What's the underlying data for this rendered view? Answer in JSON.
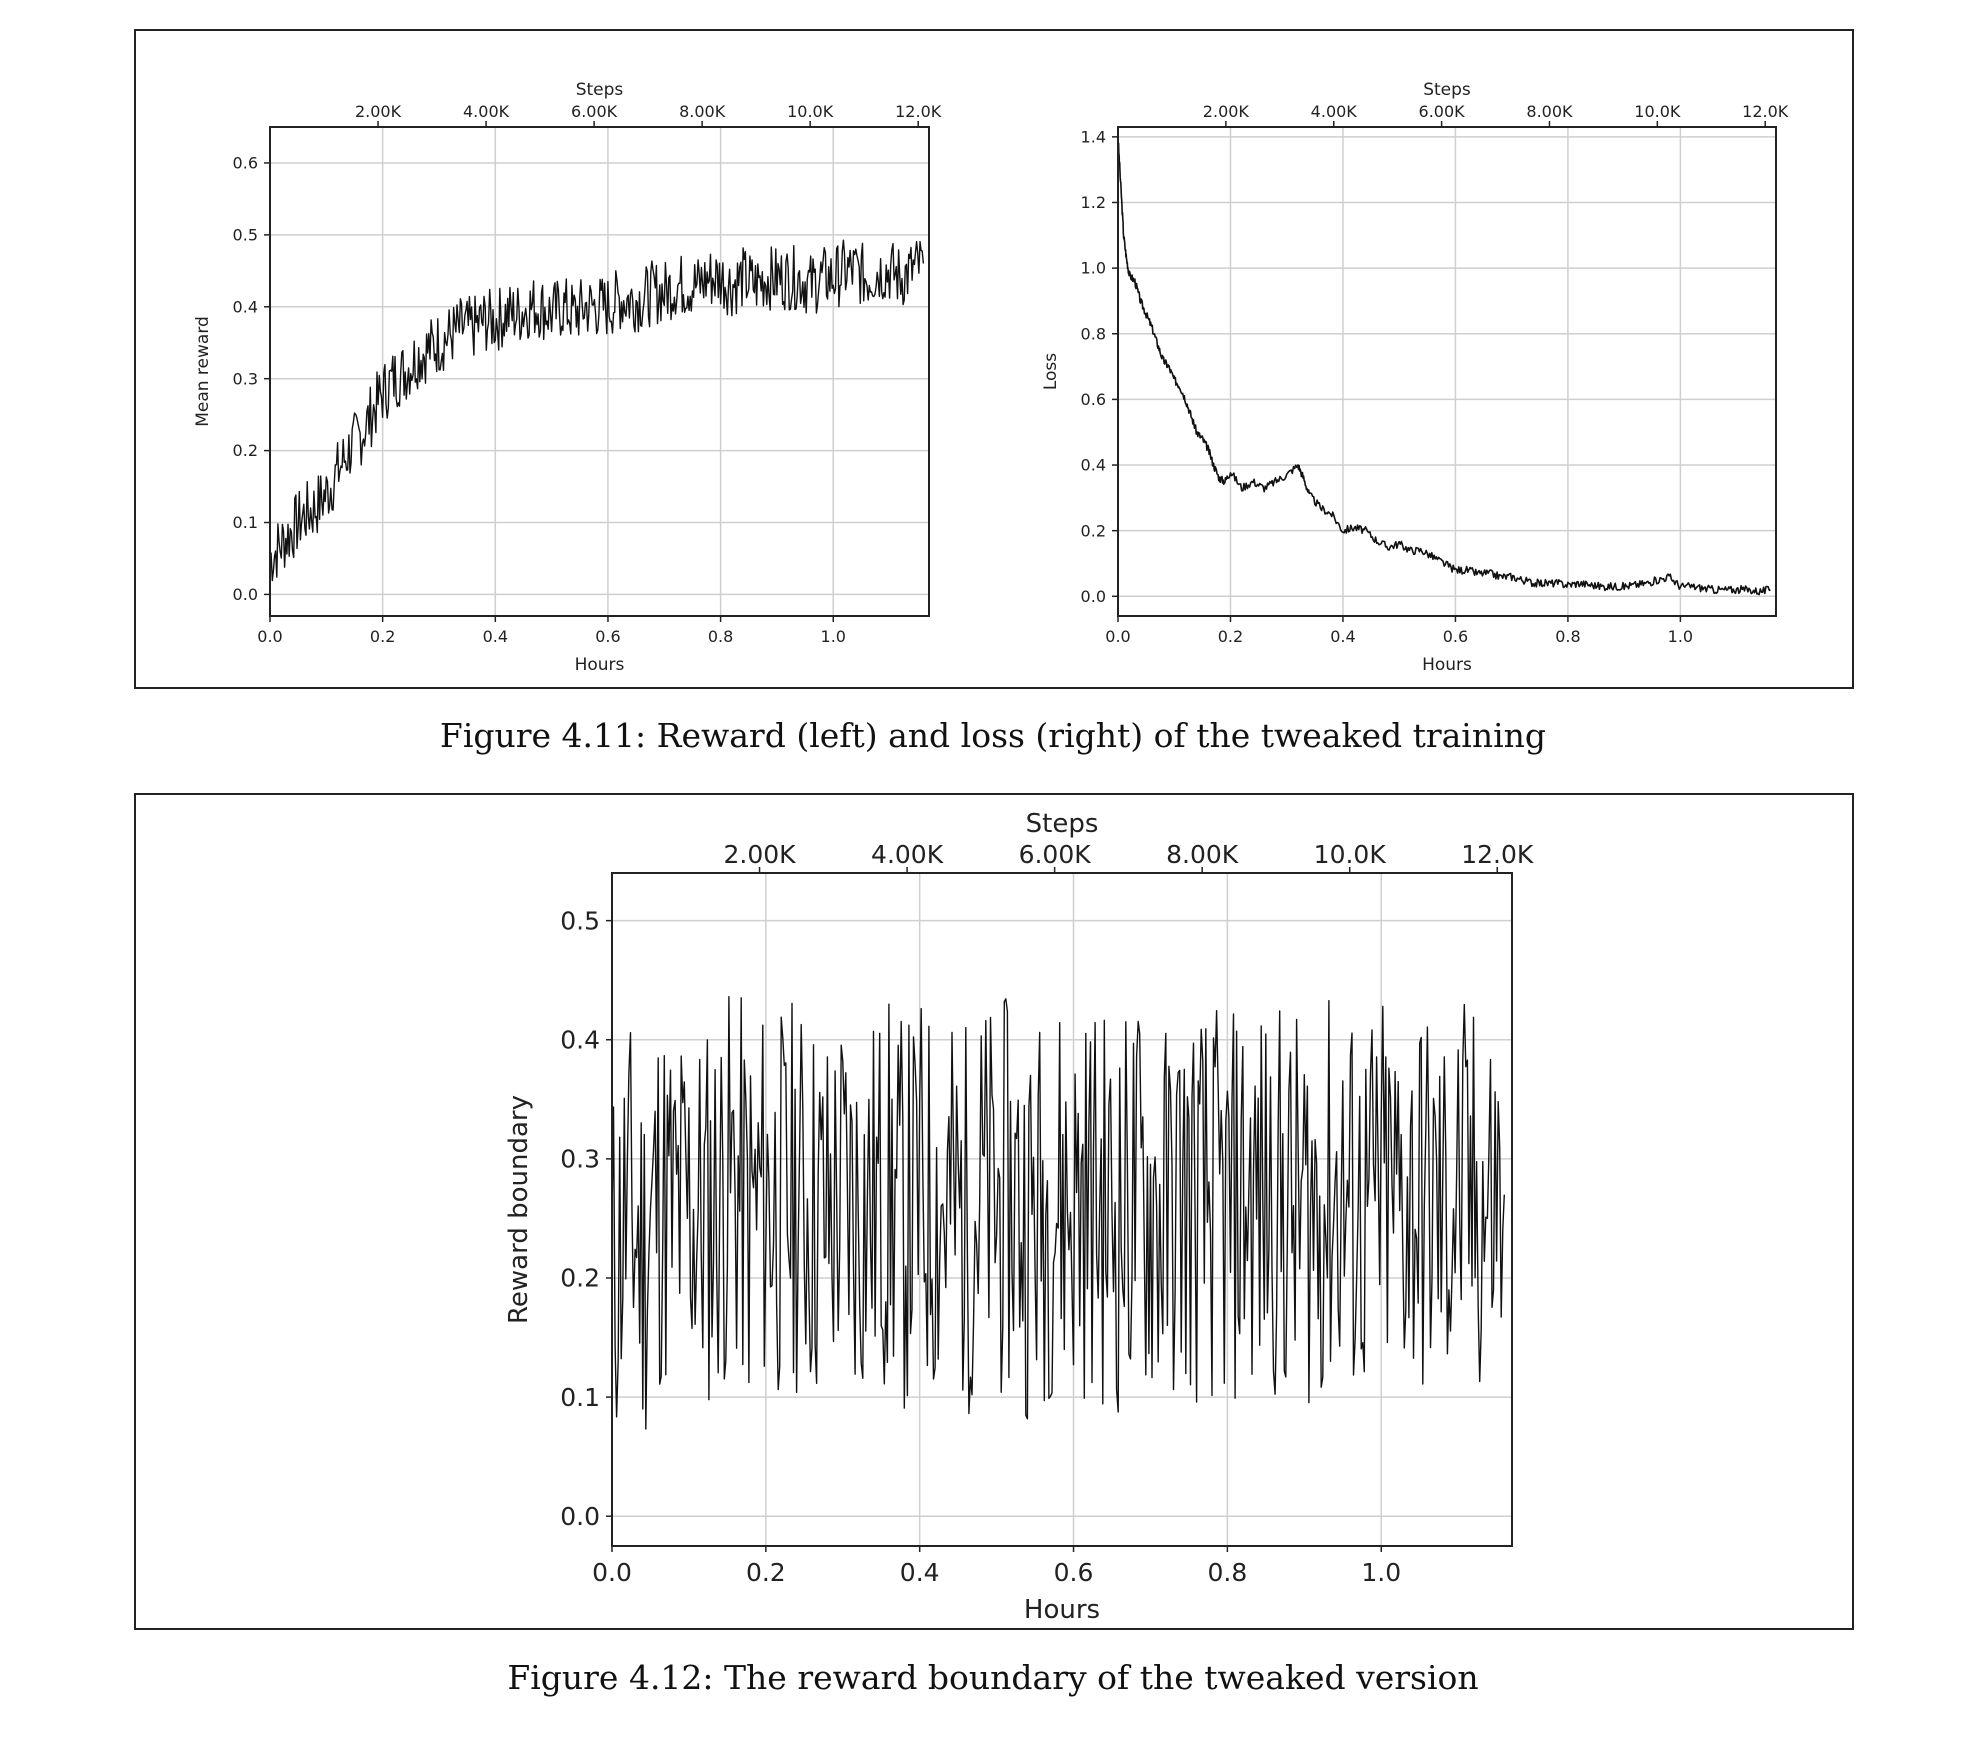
{
  "figures": {
    "fig_411_caption": "Figure 4.11: Reward (left) and loss (right) of the tweaked training",
    "fig_412_caption": "Figure 4.12: The reward boundary of the tweaked version"
  },
  "chart_data": [
    {
      "type": "line",
      "title": "",
      "xlabel": "Hours",
      "ylabel": "Mean reward",
      "secondary_xlabel": "Steps",
      "xlim": [
        0.0,
        1.17
      ],
      "ylim": [
        -0.03,
        0.65
      ],
      "xticks": [
        0.0,
        0.2,
        0.4,
        0.6,
        0.8,
        1.0
      ],
      "xtick_labels": [
        "0.0",
        "0.2",
        "0.4",
        "0.6",
        "0.8",
        "1.0"
      ],
      "yticks": [
        0.0,
        0.1,
        0.2,
        0.3,
        0.4,
        0.5,
        0.6
      ],
      "ytick_labels": [
        "0.0",
        "0.1",
        "0.2",
        "0.3",
        "0.4",
        "0.5",
        "0.6"
      ],
      "top_ticks": [
        2000,
        4000,
        6000,
        8000,
        10000,
        12000
      ],
      "top_tick_labels": [
        "2.00K",
        "4.00K",
        "6.00K",
        "8.00K",
        "10.0K",
        "12.0K"
      ],
      "top_xlim": [
        0,
        12200
      ],
      "grid": true,
      "series": [
        {
          "x": [
            0.0,
            0.02,
            0.04,
            0.06,
            0.08,
            0.1,
            0.12,
            0.14,
            0.16,
            0.18,
            0.2,
            0.22,
            0.24,
            0.26,
            0.28,
            0.3,
            0.32,
            0.34,
            0.36,
            0.38,
            0.4,
            0.42,
            0.44,
            0.46,
            0.48,
            0.5,
            0.52,
            0.54,
            0.56,
            0.58,
            0.6,
            0.62,
            0.64,
            0.66,
            0.68,
            0.7,
            0.72,
            0.74,
            0.76,
            0.78,
            0.8,
            0.82,
            0.84,
            0.86,
            0.88,
            0.9,
            0.92,
            0.94,
            0.96,
            0.98,
            1.0,
            1.02,
            1.04,
            1.06,
            1.08,
            1.1,
            1.12,
            1.14,
            1.16
          ],
          "y": [
            0.05,
            0.07,
            0.09,
            0.11,
            0.12,
            0.14,
            0.17,
            0.2,
            0.22,
            0.25,
            0.28,
            0.3,
            0.31,
            0.33,
            0.34,
            0.35,
            0.36,
            0.37,
            0.37,
            0.38,
            0.38,
            0.39,
            0.39,
            0.4,
            0.4,
            0.39,
            0.4,
            0.39,
            0.4,
            0.4,
            0.4,
            0.41,
            0.41,
            0.41,
            0.42,
            0.42,
            0.43,
            0.43,
            0.43,
            0.44,
            0.44,
            0.43,
            0.44,
            0.43,
            0.44,
            0.44,
            0.44,
            0.44,
            0.43,
            0.44,
            0.44,
            0.45,
            0.45,
            0.44,
            0.45,
            0.45,
            0.44,
            0.45,
            0.46
          ]
        }
      ]
    },
    {
      "type": "line",
      "title": "",
      "xlabel": "Hours",
      "ylabel": "Loss",
      "secondary_xlabel": "Steps",
      "xlim": [
        0.0,
        1.17
      ],
      "ylim": [
        -0.06,
        1.43
      ],
      "xticks": [
        0.0,
        0.2,
        0.4,
        0.6,
        0.8,
        1.0
      ],
      "xtick_labels": [
        "0.0",
        "0.2",
        "0.4",
        "0.6",
        "0.8",
        "1.0"
      ],
      "yticks": [
        0.0,
        0.2,
        0.4,
        0.6,
        0.8,
        1.0,
        1.2,
        1.4
      ],
      "ytick_labels": [
        "0.0",
        "0.2",
        "0.4",
        "0.6",
        "0.8",
        "1.0",
        "1.2",
        "1.4"
      ],
      "top_ticks": [
        2000,
        4000,
        6000,
        8000,
        10000,
        12000
      ],
      "top_tick_labels": [
        "2.00K",
        "4.00K",
        "6.00K",
        "8.00K",
        "10.0K",
        "12.0K"
      ],
      "top_xlim": [
        0,
        12200
      ],
      "grid": true,
      "series": [
        {
          "x": [
            0.0,
            0.005,
            0.01,
            0.015,
            0.02,
            0.03,
            0.04,
            0.05,
            0.06,
            0.07,
            0.08,
            0.09,
            0.1,
            0.11,
            0.12,
            0.13,
            0.14,
            0.15,
            0.16,
            0.17,
            0.18,
            0.19,
            0.2,
            0.22,
            0.24,
            0.26,
            0.28,
            0.3,
            0.32,
            0.33,
            0.34,
            0.36,
            0.38,
            0.4,
            0.42,
            0.44,
            0.46,
            0.48,
            0.5,
            0.52,
            0.54,
            0.56,
            0.58,
            0.6,
            0.62,
            0.64,
            0.66,
            0.68,
            0.7,
            0.72,
            0.74,
            0.76,
            0.78,
            0.8,
            0.82,
            0.84,
            0.86,
            0.88,
            0.9,
            0.92,
            0.94,
            0.96,
            0.98,
            1.0,
            1.02,
            1.04,
            1.06,
            1.08,
            1.1,
            1.12,
            1.14,
            1.16
          ],
          "y": [
            1.4,
            1.25,
            1.1,
            1.03,
            0.98,
            0.96,
            0.9,
            0.86,
            0.82,
            0.77,
            0.72,
            0.7,
            0.66,
            0.64,
            0.6,
            0.55,
            0.5,
            0.48,
            0.45,
            0.4,
            0.36,
            0.35,
            0.38,
            0.33,
            0.35,
            0.33,
            0.35,
            0.37,
            0.4,
            0.36,
            0.31,
            0.27,
            0.25,
            0.2,
            0.21,
            0.2,
            0.17,
            0.15,
            0.16,
            0.14,
            0.14,
            0.12,
            0.1,
            0.08,
            0.08,
            0.07,
            0.07,
            0.06,
            0.06,
            0.05,
            0.04,
            0.04,
            0.04,
            0.035,
            0.04,
            0.035,
            0.03,
            0.03,
            0.03,
            0.035,
            0.04,
            0.05,
            0.06,
            0.03,
            0.03,
            0.025,
            0.02,
            0.02,
            0.02,
            0.02,
            0.015,
            0.02
          ]
        }
      ]
    },
    {
      "type": "line",
      "title": "",
      "xlabel": "Hours",
      "ylabel": "Reward boundary",
      "secondary_xlabel": "Steps",
      "xlim": [
        0.0,
        1.17
      ],
      "ylim": [
        -0.025,
        0.54
      ],
      "xticks": [
        0.0,
        0.2,
        0.4,
        0.6,
        0.8,
        1.0
      ],
      "xtick_labels": [
        "0.0",
        "0.2",
        "0.4",
        "0.6",
        "0.8",
        "1.0"
      ],
      "yticks": [
        0.0,
        0.1,
        0.2,
        0.3,
        0.4,
        0.5
      ],
      "ytick_labels": [
        "0.0",
        "0.1",
        "0.2",
        "0.3",
        "0.4",
        "0.5"
      ],
      "top_ticks": [
        2000,
        4000,
        6000,
        8000,
        10000,
        12000
      ],
      "top_tick_labels": [
        "2.00K",
        "4.00K",
        "6.00K",
        "8.00K",
        "10.0K",
        "12.0K"
      ],
      "top_xlim": [
        0,
        12200
      ],
      "grid": true,
      "series": [
        {
          "x": [
            0.0,
            0.02,
            0.04,
            0.06,
            0.08,
            0.1,
            0.12,
            0.14,
            0.16,
            0.18,
            0.2,
            0.22,
            0.24,
            0.26,
            0.28,
            0.3,
            0.32,
            0.34,
            0.36,
            0.38,
            0.4,
            0.42,
            0.44,
            0.46,
            0.48,
            0.5,
            0.52,
            0.54,
            0.56,
            0.58,
            0.6,
            0.62,
            0.64,
            0.66,
            0.68,
            0.7,
            0.72,
            0.74,
            0.76,
            0.78,
            0.8,
            0.82,
            0.84,
            0.86,
            0.88,
            0.9,
            0.92,
            0.94,
            0.96,
            0.98,
            1.0,
            1.02,
            1.04,
            1.06,
            1.08,
            1.1,
            1.12,
            1.14,
            1.16
          ],
          "y": [
            0.2,
            0.26,
            0.22,
            0.27,
            0.25,
            0.26,
            0.25,
            0.27,
            0.28,
            0.25,
            0.27,
            0.26,
            0.27,
            0.26,
            0.25,
            0.27,
            0.26,
            0.26,
            0.27,
            0.25,
            0.27,
            0.26,
            0.26,
            0.25,
            0.27,
            0.26,
            0.27,
            0.25,
            0.26,
            0.27,
            0.26,
            0.27,
            0.26,
            0.25,
            0.27,
            0.26,
            0.25,
            0.27,
            0.26,
            0.26,
            0.25,
            0.27,
            0.26,
            0.27,
            0.25,
            0.26,
            0.26,
            0.27,
            0.26,
            0.25,
            0.27,
            0.26,
            0.27,
            0.26,
            0.25,
            0.27,
            0.26,
            0.26,
            0.27
          ]
        }
      ]
    }
  ]
}
